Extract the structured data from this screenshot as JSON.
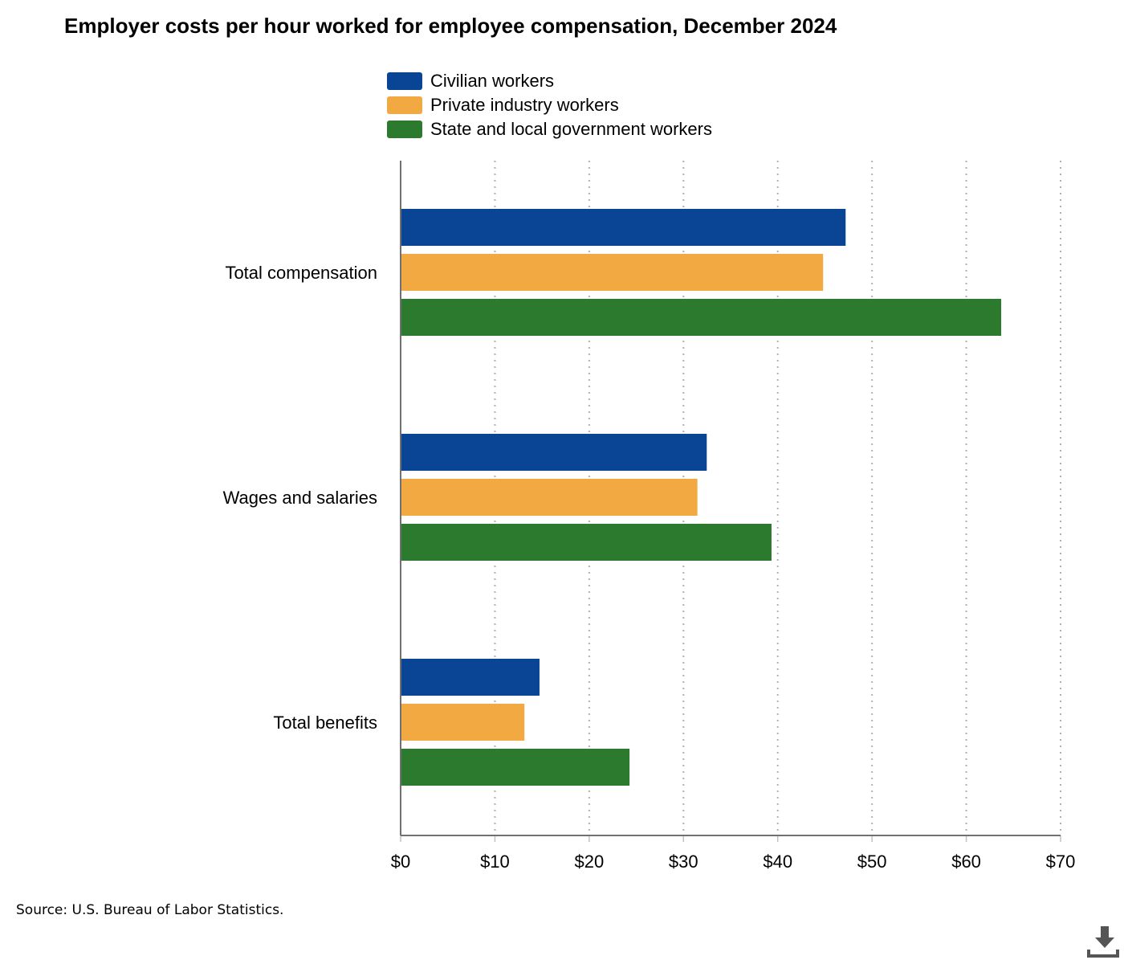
{
  "chart_data": {
    "type": "bar",
    "orientation": "horizontal",
    "title": "Employer costs per hour worked for employee compensation, December 2024",
    "categories": [
      "Total compensation",
      "Wages and salaries",
      "Total benefits"
    ],
    "series": [
      {
        "name": "Civilian workers",
        "color": "#0a4595",
        "values": [
          47.2,
          32.47,
          14.73
        ]
      },
      {
        "name": "Private industry workers",
        "color": "#f3a942",
        "values": [
          44.81,
          31.48,
          13.13
        ]
      },
      {
        "name": "State and local government workers",
        "color": "#2c7a2d",
        "values": [
          63.7,
          39.34,
          24.28
        ]
      }
    ],
    "xlim": [
      0,
      70
    ],
    "x_ticks": [
      0,
      10,
      20,
      30,
      40,
      50,
      60,
      70
    ],
    "x_tick_labels": [
      "$0",
      "$10",
      "$20",
      "$30",
      "$40",
      "$50",
      "$60",
      "$70"
    ],
    "xlabel": "",
    "ylabel": "",
    "grid": "vertical dotted",
    "legend_position": "top"
  },
  "source": "Source: U.S. Bureau of Labor Statistics.",
  "download_icon": "download-icon"
}
